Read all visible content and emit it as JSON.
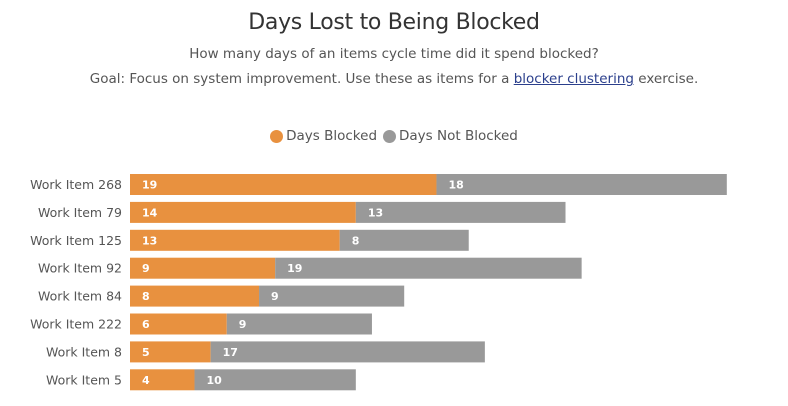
{
  "title": "Days Lost to Being Blocked",
  "subtitle": "How many days of an items cycle time did it spend blocked?",
  "goal": {
    "prefix": "Goal: Focus on system improvement. Use these as items for a ",
    "link_text": "blocker clustering",
    "suffix": " exercise."
  },
  "chart_data": {
    "type": "bar",
    "orientation": "horizontal",
    "stacked": true,
    "categories": [
      "Work Item 268",
      "Work Item 79",
      "Work Item 125",
      "Work Item 92",
      "Work Item 84",
      "Work Item 222",
      "Work Item 8",
      "Work Item 5"
    ],
    "series": [
      {
        "name": "Days Blocked",
        "color": "#e8913f",
        "values": [
          19,
          14,
          13,
          9,
          8,
          6,
          5,
          4
        ]
      },
      {
        "name": "Days Not Blocked",
        "color": "#999999",
        "values": [
          18,
          13,
          8,
          19,
          9,
          9,
          17,
          10
        ]
      }
    ],
    "legend_position": "top-center",
    "grid": false
  }
}
